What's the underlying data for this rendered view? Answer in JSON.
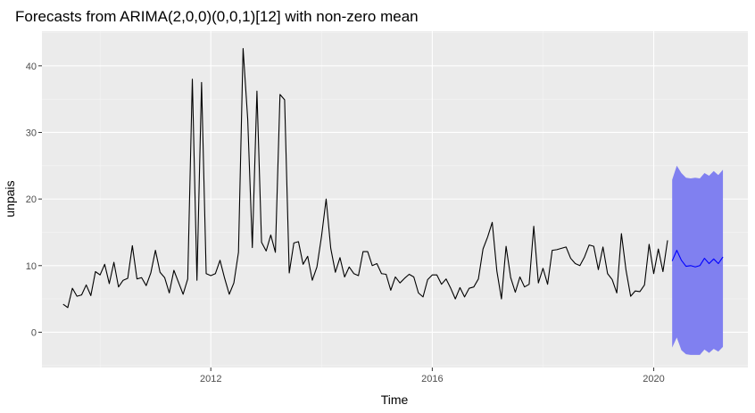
{
  "chart_data": {
    "type": "line",
    "title": "Forecasts from ARIMA(2,0,0)(0,0,1)[12] with non-zero mean",
    "xlabel": "Time",
    "ylabel": "unpais",
    "xlim": [
      2008.95,
      2021.7
    ],
    "ylim": [
      -5.3,
      45.2
    ],
    "x_ticks": [
      2012,
      2016,
      2020
    ],
    "x_tick_labels": [
      "2012",
      "2016",
      "2020"
    ],
    "y_ticks": [
      0,
      10,
      20,
      30,
      40
    ],
    "y_tick_labels": [
      "0",
      "10",
      "20",
      "30",
      "40"
    ],
    "grid": true,
    "start": 2009.333,
    "frequency": 12,
    "series": [
      {
        "role": "observed",
        "color": "#000000",
        "values": [
          4.2,
          3.7,
          6.6,
          5.4,
          5.6,
          7.1,
          5.5,
          9.1,
          8.6,
          10.2,
          7.3,
          10.5,
          6.8,
          7.8,
          8.1,
          13.0,
          8.0,
          8.2,
          7.0,
          8.9,
          12.3,
          9.0,
          8.2,
          5.9,
          9.3,
          7.5,
          5.7,
          8.0,
          38.0,
          7.8,
          37.5,
          8.8,
          8.5,
          8.8,
          10.8,
          8.1,
          5.7,
          7.4,
          12.0,
          42.6,
          32.0,
          12.7,
          36.2,
          13.5,
          12.2,
          14.6,
          12.0,
          35.7,
          34.9,
          8.9,
          13.4,
          13.6,
          10.2,
          11.4,
          7.8,
          9.8,
          14.4,
          20.0,
          12.6,
          9.0,
          11.2,
          8.3,
          9.8,
          8.8,
          8.5,
          12.1,
          12.1,
          10.0,
          10.3,
          8.8,
          8.7,
          6.3,
          8.3,
          7.4,
          8.1,
          8.7,
          8.3,
          5.9,
          5.3,
          7.9,
          8.6,
          8.6,
          7.2,
          8.0,
          6.6,
          5.0,
          6.7,
          5.3,
          6.6,
          6.8,
          8.0,
          12.5,
          14.3,
          16.5,
          9.2,
          5.0,
          12.9,
          8.2,
          6.0,
          8.3,
          6.8,
          7.2,
          15.9,
          7.4,
          9.6,
          7.2,
          12.3,
          12.4,
          12.6,
          12.8,
          11.1,
          10.3,
          10.0,
          11.3,
          13.1,
          12.9,
          9.4,
          12.8,
          8.8,
          7.9,
          5.9,
          14.8,
          9.3,
          5.4,
          6.2,
          6.1,
          7.1,
          13.2,
          8.8,
          12.5,
          9.1,
          13.8
        ]
      },
      {
        "role": "forecast",
        "color": "#0000ff",
        "band_color": "#8080f0",
        "values": [
          10.7,
          12.3,
          10.8,
          9.9,
          10.0,
          9.8,
          10.0,
          11.1,
          10.3,
          11.0,
          10.3,
          11.3
        ],
        "lower": [
          -2.3,
          -0.8,
          -2.7,
          -3.3,
          -3.4,
          -3.4,
          -3.4,
          -2.6,
          -3.1,
          -2.5,
          -2.9,
          -2.2
        ],
        "upper": [
          22.9,
          25.0,
          23.9,
          23.2,
          23.1,
          23.2,
          23.1,
          23.9,
          23.5,
          24.2,
          23.6,
          24.4
        ]
      }
    ]
  },
  "colors": {
    "panel": "#ebebeb",
    "grid_major": "#ffffff",
    "grid_minor": "#f5f5f5",
    "tick": "#333333"
  }
}
